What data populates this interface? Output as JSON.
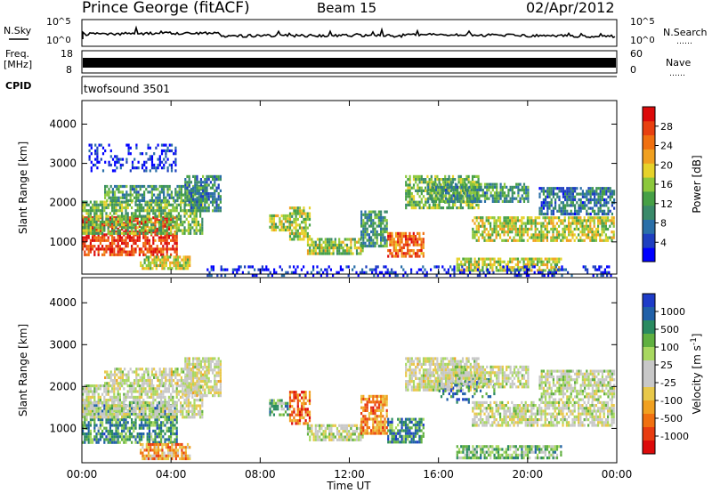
{
  "header": {
    "station": "Prince George (fitACF)",
    "beam": "Beam 15",
    "date": "02/Apr/2012"
  },
  "side_labels": {
    "nsky": "N.Sky",
    "freq_line1": "Freq.",
    "freq_line2": "[MHz]",
    "cpid": "CPID",
    "nsearch": "N.Search",
    "nave": "Nave",
    "dots": "……"
  },
  "noise_panel": {
    "left_ticks": [
      {
        "base": "10",
        "exp": "^5"
      },
      {
        "base": "10",
        "exp": "^0"
      }
    ],
    "right_ticks": [
      {
        "base": "10",
        "exp": "^5"
      },
      {
        "base": "10",
        "exp": "^0"
      }
    ]
  },
  "freq_panel": {
    "left_ticks": [
      "18",
      "8"
    ],
    "right_ticks": [
      "60",
      "0"
    ]
  },
  "cpid_panel": {
    "program": "twofsound 3501"
  },
  "chart_data": [
    {
      "type": "heatmap",
      "panel": "power",
      "ylabel": "Slant Range [km]",
      "xlabel": "Time UT",
      "x_ticks": [
        "00:00",
        "04:00",
        "08:00",
        "12:00",
        "16:00",
        "20:00",
        "00:00"
      ],
      "xlim_hours": [
        0,
        24
      ],
      "y_ticks": [
        1000,
        2000,
        3000,
        4000
      ],
      "ylim_km": [
        180,
        4600
      ],
      "colorbar": {
        "label": "Power [dB]",
        "ticks": [
          "4",
          "8",
          "12",
          "16",
          "20",
          "24",
          "28"
        ],
        "range": [
          0,
          30
        ],
        "colors": [
          "#0000ff",
          "#1f3fc0",
          "#2a6fa8",
          "#3a8a6a",
          "#46a046",
          "#8cc83c",
          "#e6d22a",
          "#f0a020",
          "#f07010",
          "#e84010",
          "#dc0a0a"
        ]
      },
      "regions": [
        {
          "t": [
            0.0,
            4.3
          ],
          "r": [
            650,
            1650
          ],
          "level": 0.9
        },
        {
          "t": [
            0.0,
            5.4
          ],
          "r": [
            1250,
            2050
          ],
          "level": 0.45
        },
        {
          "t": [
            1.0,
            5.6
          ],
          "r": [
            2050,
            2450
          ],
          "level": 0.35
        },
        {
          "t": [
            4.6,
            6.2
          ],
          "r": [
            1800,
            2700
          ],
          "level": 0.3
        },
        {
          "t": [
            2.6,
            4.8
          ],
          "r": [
            300,
            650
          ],
          "level": 0.55
        },
        {
          "t": [
            0.3,
            4.2
          ],
          "r": [
            2800,
            3500
          ],
          "level": 0.1
        },
        {
          "t": [
            8.4,
            9.3
          ],
          "r": [
            1300,
            1700
          ],
          "level": 0.5
        },
        {
          "t": [
            9.3,
            10.2
          ],
          "r": [
            1100,
            1900
          ],
          "level": 0.5
        },
        {
          "t": [
            10.1,
            12.6
          ],
          "r": [
            700,
            1100
          ],
          "level": 0.5
        },
        {
          "t": [
            12.5,
            13.7
          ],
          "r": [
            900,
            1800
          ],
          "level": 0.35
        },
        {
          "t": [
            13.7,
            15.3
          ],
          "r": [
            650,
            1250
          ],
          "level": 0.8
        },
        {
          "t": [
            14.5,
            17.8
          ],
          "r": [
            1900,
            2700
          ],
          "level": 0.45
        },
        {
          "t": [
            17.5,
            23.9
          ],
          "r": [
            1050,
            1650
          ],
          "level": 0.55
        },
        {
          "t": [
            15.5,
            20.0
          ],
          "r": [
            2000,
            2500
          ],
          "level": 0.35
        },
        {
          "t": [
            16.8,
            21.5
          ],
          "r": [
            300,
            600
          ],
          "level": 0.55
        },
        {
          "t": [
            20.5,
            23.9
          ],
          "r": [
            1700,
            2400
          ],
          "level": 0.25
        },
        {
          "t": [
            5.6,
            23.9
          ],
          "r": [
            180,
            400
          ],
          "level": 0.1
        }
      ]
    },
    {
      "type": "heatmap",
      "panel": "velocity",
      "ylabel": "Slant Range [km]",
      "xlabel": "Time UT",
      "x_ticks": [
        "00:00",
        "04:00",
        "08:00",
        "12:00",
        "16:00",
        "20:00",
        "00:00"
      ],
      "xlim_hours": [
        0,
        24
      ],
      "y_ticks": [
        1000,
        2000,
        3000,
        4000
      ],
      "ylim_km": [
        180,
        4600
      ],
      "colorbar": {
        "label": "Velocity [m s^-1]",
        "ticks": [
          "1000",
          "500",
          "100",
          "25",
          "-25",
          "-100",
          "-500",
          "-1000"
        ],
        "range": [
          -1200,
          1200
        ],
        "colors": [
          "#1e3cc8",
          "#2060a8",
          "#2a8a60",
          "#60b040",
          "#a8d860",
          "#c8c8c8",
          "#c8c8c8",
          "#e8c84a",
          "#f0a020",
          "#f07010",
          "#e83c10",
          "#dc0a0a"
        ]
      },
      "regions": [
        {
          "t": [
            0.0,
            4.3
          ],
          "r": [
            650,
            1650
          ],
          "level": 0.25
        },
        {
          "t": [
            0.0,
            5.4
          ],
          "r": [
            1250,
            2050
          ],
          "level": 0.48
        },
        {
          "t": [
            1.0,
            5.6
          ],
          "r": [
            2050,
            2450
          ],
          "level": 0.5
        },
        {
          "t": [
            4.6,
            6.2
          ],
          "r": [
            1800,
            2700
          ],
          "level": 0.5
        },
        {
          "t": [
            2.6,
            4.8
          ],
          "r": [
            300,
            650
          ],
          "level": 0.7
        },
        {
          "t": [
            8.4,
            9.3
          ],
          "r": [
            1300,
            1700
          ],
          "level": 0.3
        },
        {
          "t": [
            9.3,
            10.2
          ],
          "r": [
            1100,
            1900
          ],
          "level": 0.82
        },
        {
          "t": [
            10.1,
            12.6
          ],
          "r": [
            700,
            1100
          ],
          "level": 0.45
        },
        {
          "t": [
            12.5,
            13.7
          ],
          "r": [
            900,
            1800
          ],
          "level": 0.75
        },
        {
          "t": [
            13.7,
            15.3
          ],
          "r": [
            650,
            1250
          ],
          "level": 0.22
        },
        {
          "t": [
            14.5,
            17.8
          ],
          "r": [
            1900,
            2700
          ],
          "level": 0.5
        },
        {
          "t": [
            16.0,
            18.5
          ],
          "r": [
            1600,
            2200
          ],
          "level": 0.15
        },
        {
          "t": [
            17.5,
            23.9
          ],
          "r": [
            1050,
            1650
          ],
          "level": 0.48
        },
        {
          "t": [
            15.5,
            20.0
          ],
          "r": [
            2000,
            2500
          ],
          "level": 0.48
        },
        {
          "t": [
            16.8,
            21.5
          ],
          "r": [
            300,
            600
          ],
          "level": 0.33
        },
        {
          "t": [
            20.5,
            23.9
          ],
          "r": [
            1700,
            2400
          ],
          "level": 0.45
        }
      ]
    }
  ]
}
